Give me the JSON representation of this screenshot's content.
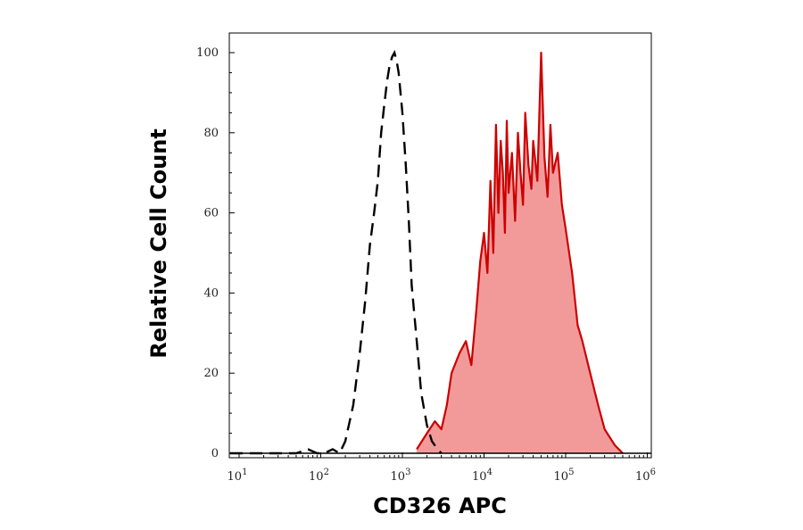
{
  "chart_data": {
    "type": "area",
    "xlabel": "CD326 APC",
    "ylabel": "Relative Cell Count",
    "x_scale": "log",
    "xlim": [
      10,
      1000000
    ],
    "ylim": [
      0,
      100
    ],
    "x_ticks": [
      {
        "value": 10,
        "base": "10",
        "exp": "1"
      },
      {
        "value": 100,
        "base": "10",
        "exp": "2"
      },
      {
        "value": 1000,
        "base": "10",
        "exp": "3"
      },
      {
        "value": 10000,
        "base": "10",
        "exp": "4"
      },
      {
        "value": 100000,
        "base": "10",
        "exp": "5"
      },
      {
        "value": 1000000,
        "base": "10",
        "exp": "6"
      }
    ],
    "y_ticks": [
      0,
      20,
      40,
      60,
      80,
      100
    ],
    "y_tick_labels": [
      "0",
      "20",
      "40",
      "60",
      "80",
      "100"
    ],
    "grid": false,
    "series": [
      {
        "style": "dashed-black",
        "color": "#000000",
        "x": [
          5,
          50,
          70,
          90,
          110,
          140,
          170,
          200,
          250,
          300,
          350,
          400,
          450,
          500,
          550,
          600,
          650,
          700,
          750,
          800,
          850,
          900,
          1000,
          1100,
          1200,
          1300,
          1500,
          1700,
          2000,
          2300,
          2700,
          3000
        ],
        "y": [
          0,
          0,
          1,
          0,
          0,
          1,
          0,
          3,
          12,
          25,
          38,
          52,
          60,
          68,
          80,
          87,
          93,
          97,
          99,
          100,
          98,
          95,
          85,
          72,
          58,
          42,
          28,
          15,
          7,
          3,
          1,
          0
        ]
      },
      {
        "style": "filled-red",
        "color": "#cc0000",
        "fill": "#f29a9a",
        "x": [
          1500,
          2000,
          2500,
          3000,
          3500,
          4000,
          5000,
          6000,
          7000,
          8000,
          9000,
          10000,
          11000,
          12000,
          13000,
          14000,
          15000,
          16000,
          17000,
          18000,
          19000,
          20000,
          22000,
          24000,
          26000,
          28000,
          30000,
          32000,
          35000,
          38000,
          40000,
          45000,
          50000,
          55000,
          60000,
          65000,
          70000,
          80000,
          90000,
          100000,
          120000,
          140000,
          160000,
          200000,
          250000,
          300000,
          400000,
          500000
        ],
        "y": [
          1,
          5,
          8,
          6,
          12,
          20,
          25,
          28,
          22,
          35,
          48,
          55,
          45,
          68,
          50,
          82,
          60,
          78,
          70,
          55,
          83,
          65,
          75,
          58,
          80,
          70,
          62,
          85,
          72,
          66,
          78,
          68,
          100,
          74,
          64,
          82,
          70,
          75,
          62,
          56,
          45,
          32,
          28,
          20,
          12,
          6,
          2,
          0
        ]
      }
    ]
  }
}
